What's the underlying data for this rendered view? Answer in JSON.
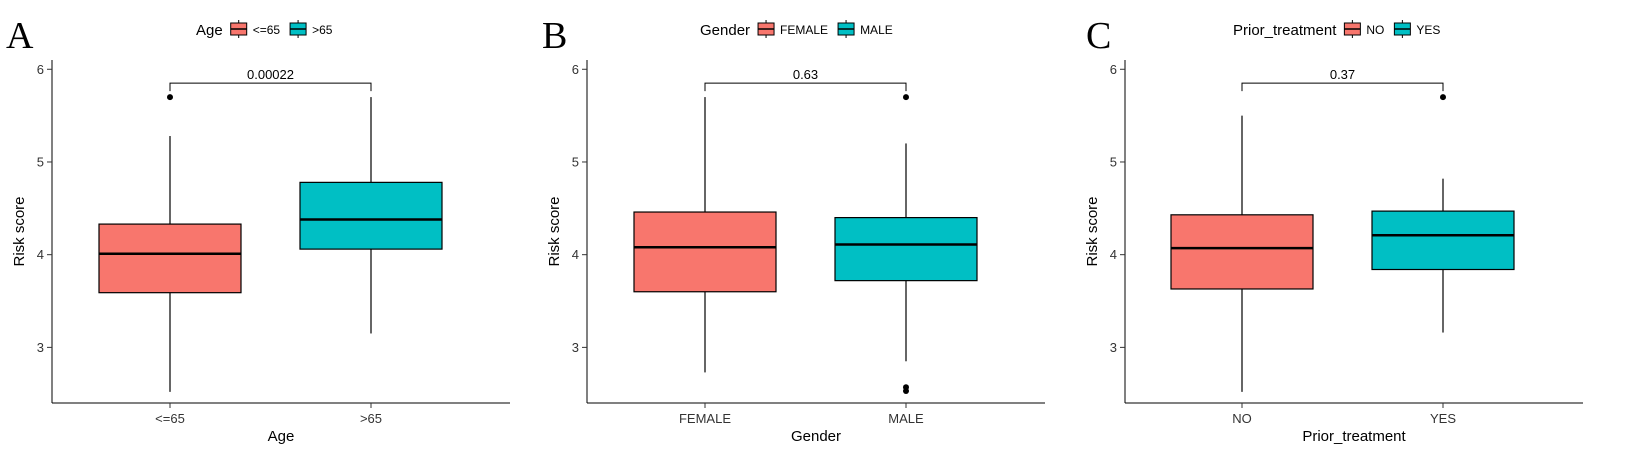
{
  "colors": {
    "low": "#F8766D",
    "high": "#00BFC4",
    "line": "#000000"
  },
  "chart_data": [
    {
      "type": "box",
      "panel": "A",
      "xlabel": "Age",
      "ylabel": "Risk score",
      "ylim": [
        2.4,
        6.1
      ],
      "yticks": [
        3,
        4,
        5,
        6
      ],
      "legend": {
        "title": "Age",
        "position": "top",
        "entries": [
          "<=65",
          ">65"
        ]
      },
      "categories": [
        "<=65",
        ">65"
      ],
      "boxes": [
        {
          "category": "<=65",
          "whisker_low": 2.52,
          "q1": 3.59,
          "median": 4.01,
          "q3": 4.33,
          "whisker_high": 5.28,
          "outliers": [
            5.7
          ]
        },
        {
          "category": ">65",
          "whisker_low": 3.15,
          "q1": 4.06,
          "median": 4.38,
          "q3": 4.78,
          "whisker_high": 5.7,
          "outliers": []
        }
      ],
      "comparison": {
        "label": "0.00022",
        "between": [
          "<=65",
          ">65"
        ]
      }
    },
    {
      "type": "box",
      "panel": "B",
      "xlabel": "Gender",
      "ylabel": "Risk score",
      "ylim": [
        2.4,
        6.1
      ],
      "yticks": [
        3,
        4,
        5,
        6
      ],
      "legend": {
        "title": "Gender",
        "position": "top",
        "entries": [
          "FEMALE",
          "MALE"
        ]
      },
      "categories": [
        "FEMALE",
        "MALE"
      ],
      "boxes": [
        {
          "category": "FEMALE",
          "whisker_low": 2.73,
          "q1": 3.6,
          "median": 4.08,
          "q3": 4.46,
          "whisker_high": 5.7,
          "outliers": []
        },
        {
          "category": "MALE",
          "whisker_low": 2.85,
          "q1": 3.72,
          "median": 4.11,
          "q3": 4.4,
          "whisker_high": 5.2,
          "outliers": [
            5.7,
            2.53,
            2.57
          ]
        }
      ],
      "comparison": {
        "label": "0.63",
        "between": [
          "FEMALE",
          "MALE"
        ]
      }
    },
    {
      "type": "box",
      "panel": "C",
      "xlabel": "Prior_treatment",
      "ylabel": "Risk score",
      "ylim": [
        2.4,
        6.1
      ],
      "yticks": [
        3,
        4,
        5,
        6
      ],
      "legend": {
        "title": "Prior_treatment",
        "position": "top",
        "entries": [
          "NO",
          "YES"
        ]
      },
      "categories": [
        "NO",
        "YES"
      ],
      "boxes": [
        {
          "category": "NO",
          "whisker_low": 2.52,
          "q1": 3.63,
          "median": 4.07,
          "q3": 4.43,
          "whisker_high": 5.5,
          "outliers": []
        },
        {
          "category": "YES",
          "whisker_low": 3.16,
          "q1": 3.84,
          "median": 4.21,
          "q3": 4.47,
          "whisker_high": 4.82,
          "outliers": [
            5.7
          ]
        }
      ],
      "comparison": {
        "label": "0.37",
        "between": [
          "NO",
          "YES"
        ]
      }
    }
  ]
}
